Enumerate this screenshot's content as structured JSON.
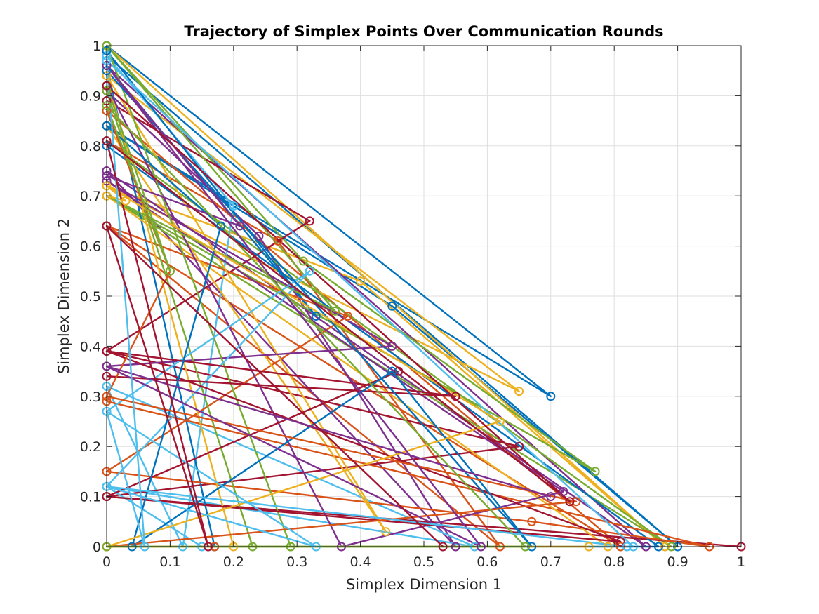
{
  "chart_data": {
    "type": "line",
    "title": "Trajectory of Simplex Points Over Communication Rounds",
    "xlabel": "Simplex Dimension 1",
    "ylabel": "Simplex Dimension 2",
    "xlim": [
      0,
      1
    ],
    "ylim": [
      0,
      1
    ],
    "x_ticks": [
      "0",
      "0.1",
      "0.2",
      "0.3",
      "0.4",
      "0.5",
      "0.6",
      "0.7",
      "0.8",
      "0.9",
      "1"
    ],
    "y_ticks": [
      "0",
      "0.1",
      "0.2",
      "0.3",
      "0.4",
      "0.5",
      "0.6",
      "0.7",
      "0.8",
      "0.9",
      "1"
    ],
    "grid": true,
    "legend": "none",
    "marker": "circle",
    "colors": [
      "#0072BD",
      "#D95319",
      "#EDB120",
      "#7E2F8E",
      "#77AC30",
      "#4DBEEE",
      "#A2142F"
    ],
    "series": [
      {
        "x": [
          0.0,
          0.7,
          0.0,
          0.45,
          0.9,
          0.0
        ],
        "y": [
          1.0,
          0.3,
          0.84,
          0.48,
          0.0,
          0.98
        ]
      },
      {
        "x": [
          0.0,
          0.27,
          0.62,
          0.0,
          0.81,
          0.0
        ],
        "y": [
          0.81,
          0.61,
          0.0,
          0.64,
          0.0,
          0.87
        ]
      },
      {
        "x": [
          0.0,
          0.65,
          0.0,
          0.4,
          0.88,
          0.0
        ],
        "y": [
          0.94,
          0.31,
          0.72,
          0.53,
          0.0,
          1.0
        ]
      },
      {
        "x": [
          0.0,
          0.24,
          0.55,
          0.0,
          0.85,
          0.0
        ],
        "y": [
          0.91,
          0.62,
          0.0,
          0.75,
          0.0,
          0.96
        ]
      },
      {
        "x": [
          0.0,
          0.31,
          0.77,
          0.0,
          0.89,
          0.0
        ],
        "y": [
          1.0,
          0.57,
          0.15,
          0.7,
          0.0,
          0.81
        ]
      },
      {
        "x": [
          0.0,
          0.2,
          0.12,
          0.0,
          0.58,
          0.0
        ],
        "y": [
          0.98,
          0.68,
          0.0,
          0.32,
          0.0,
          0.12
        ]
      },
      {
        "x": [
          0.0,
          0.32,
          0.0,
          0.65,
          0.0,
          1.0
        ],
        "y": [
          0.89,
          0.65,
          0.39,
          0.2,
          0.1,
          0.0
        ]
      },
      {
        "x": [
          0.0,
          0.33,
          0.0,
          0.17,
          0.87,
          0.0
        ],
        "y": [
          0.99,
          0.46,
          0.96,
          0.0,
          0.0,
          0.8
        ]
      },
      {
        "x": [
          0.0,
          0.38,
          0.0,
          0.67,
          0.95,
          0.0
        ],
        "y": [
          0.64,
          0.46,
          0.15,
          0.05,
          0.0,
          0.29
        ]
      },
      {
        "x": [
          0.0,
          0.44,
          0.0,
          0.2,
          0.79,
          0.0
        ],
        "y": [
          0.84,
          0.03,
          0.94,
          0.0,
          0.0,
          0.7
        ]
      },
      {
        "x": [
          0.0,
          0.45,
          0.0,
          0.72,
          0.37,
          0.0
        ],
        "y": [
          0.36,
          0.4,
          0.73,
          0.11,
          0.0,
          0.92
        ]
      },
      {
        "x": [
          0.0,
          0.36,
          0.0,
          0.29,
          0.23,
          0.0
        ],
        "y": [
          0.7,
          0.47,
          1.0,
          0.0,
          0.0,
          0.91
        ]
      },
      {
        "x": [
          0.0,
          0.32,
          0.0,
          0.15,
          0.83,
          0.0
        ],
        "y": [
          0.27,
          0.55,
          0.12,
          0.0,
          0.0,
          0.97
        ]
      },
      {
        "x": [
          0.0,
          0.55,
          0.0,
          0.81,
          0.0,
          0.46
        ],
        "y": [
          0.34,
          0.3,
          0.39,
          0.01,
          0.1,
          0.35
        ]
      },
      {
        "x": [
          0.0,
          0.18,
          0.04,
          0.45,
          0.67,
          0.0
        ],
        "y": [
          0.84,
          0.64,
          0.0,
          0.35,
          0.0,
          0.95
        ]
      },
      {
        "x": [
          0.0,
          0.1,
          0.0,
          0.74,
          0.0,
          0.17
        ],
        "y": [
          0.87,
          0.55,
          0.3,
          0.09,
          0.0,
          0.0
        ]
      },
      {
        "x": [
          0.0,
          0.03,
          0.0,
          0.62,
          0.0,
          0.76
        ],
        "y": [
          0.7,
          0.69,
          0.72,
          0.25,
          0.0,
          0.0
        ]
      },
      {
        "x": [
          0.0,
          0.21,
          0.0,
          0.59,
          0.0,
          0.7
        ],
        "y": [
          0.74,
          0.64,
          0.96,
          0.0,
          0.36,
          0.1
        ]
      },
      {
        "x": [
          0.0,
          0.1,
          0.0,
          0.66,
          0.0,
          0.29
        ],
        "y": [
          0.92,
          0.55,
          0.88,
          0.0,
          0.0,
          0.0
        ]
      },
      {
        "x": [
          0.0,
          0.06,
          0.0,
          0.33,
          0.0,
          0.82
        ],
        "y": [
          0.97,
          0.0,
          0.27,
          0.0,
          0.12,
          0.0
        ]
      },
      {
        "x": [
          0.0,
          0.73,
          0.0,
          0.16,
          0.0,
          0.53
        ],
        "y": [
          0.92,
          0.09,
          0.81,
          0.0,
          0.64,
          0.0
        ]
      }
    ]
  }
}
